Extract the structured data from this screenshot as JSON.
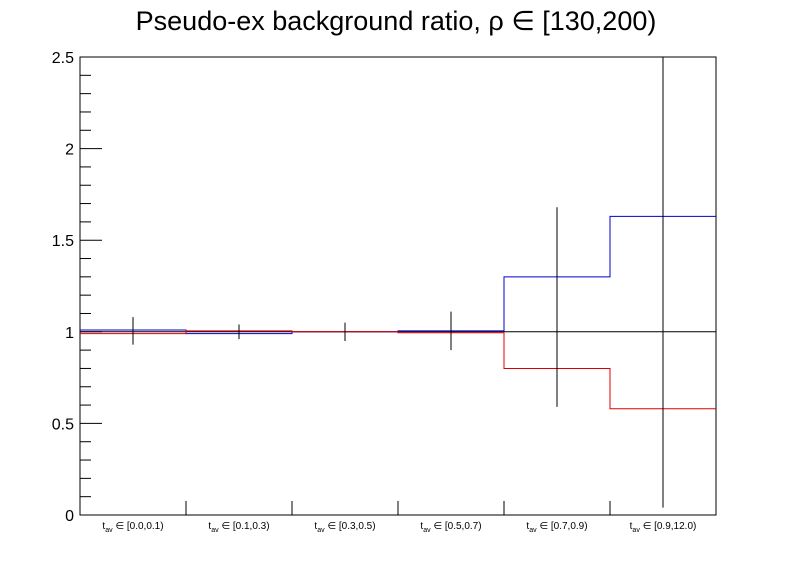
{
  "chart_data": {
    "type": "line",
    "title": "Pseudo-ex background ratio,   ρ ∈ [130,200)",
    "xlabel": "",
    "ylabel": "",
    "ylim": [
      0,
      2.5
    ],
    "yticks": [
      "0",
      "0.5",
      "1",
      "1.5",
      "2",
      "2.5"
    ],
    "categories": [
      {
        "prefix": "t",
        "sub": "av",
        "range": " ∈ [0.0,0.1)"
      },
      {
        "prefix": "t",
        "sub": "av",
        "range": " ∈ [0.1,0.3)"
      },
      {
        "prefix": "t",
        "sub": "av",
        "range": " ∈ [0.3,0.5)"
      },
      {
        "prefix": "t",
        "sub": "av",
        "range": " ∈ [0.5,0.7)"
      },
      {
        "prefix": "t",
        "sub": "av",
        "range": " ∈ [0.7,0.9)"
      },
      {
        "prefix": "t",
        "sub": "av",
        "range": " ∈ [0.9,12.0)"
      }
    ],
    "reference_line": 1.0,
    "series": [
      {
        "color": "#0000cc",
        "values": [
          1.01,
          0.99,
          1.0,
          1.005,
          1.3,
          1.63
        ]
      },
      {
        "color": "#dd0000",
        "values": [
          0.99,
          1.005,
          1.0,
          0.995,
          0.8,
          0.58
        ]
      }
    ],
    "error_bars": [
      {
        "low": 0.93,
        "high": 1.08
      },
      {
        "low": 0.96,
        "high": 1.04
      },
      {
        "low": 0.95,
        "high": 1.05
      },
      {
        "low": 0.9,
        "high": 1.11
      },
      {
        "low": 0.59,
        "high": 1.68
      },
      {
        "low": 0.04,
        "high": 2.5
      }
    ],
    "grid": false,
    "legend": "none"
  }
}
